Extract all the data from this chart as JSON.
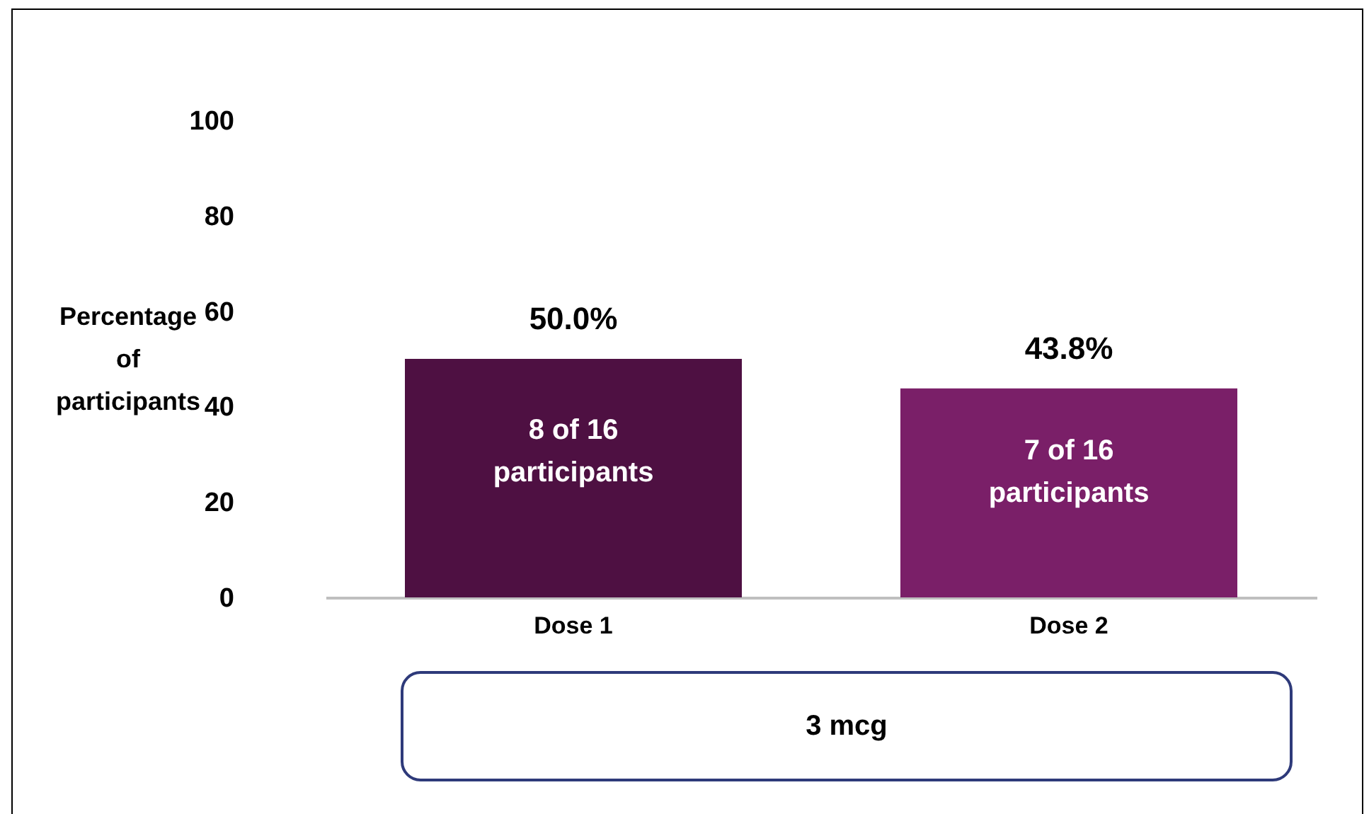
{
  "chart_data": {
    "type": "bar",
    "ylabel": "Percentage of participants",
    "categories": [
      "Dose 1",
      "Dose 2"
    ],
    "values": [
      50.0,
      43.8
    ],
    "colors": [
      "#4e1042",
      "#7a1f68"
    ],
    "value_labels": [
      "50.0%",
      "43.8%"
    ],
    "ylim": [
      0,
      100
    ],
    "yticks": [
      0,
      20,
      40,
      60,
      80,
      100
    ],
    "annotations": [
      "8 of 16\nparticipants",
      "7 of 16\nparticipants",
      "3 mcg"
    ]
  }
}
